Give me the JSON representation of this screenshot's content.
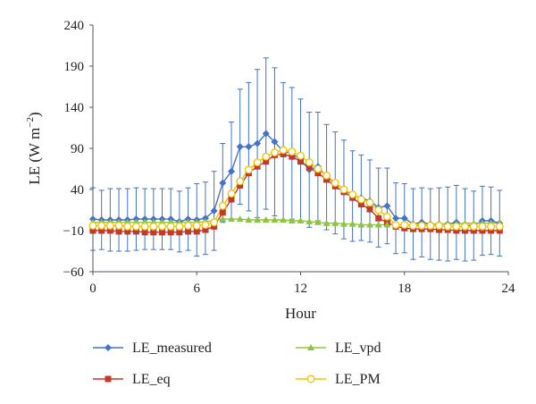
{
  "chart_data": {
    "type": "line",
    "xlabel": "Hour",
    "ylabel_main": "LE (W m",
    "ylabel_exp": "−2",
    "ylabel_close": ")",
    "xlim": [
      0,
      24
    ],
    "ylim": [
      -60,
      240
    ],
    "xticks": [
      "0",
      "6",
      "12",
      "18",
      "24"
    ],
    "yticks": [
      "240",
      "190",
      "140",
      "90",
      "40",
      "−10",
      "−60"
    ],
    "grid": false,
    "legend_position": "bottom",
    "x": [
      0,
      0.5,
      1,
      1.5,
      2,
      2.5,
      3,
      3.5,
      4,
      4.5,
      5,
      5.5,
      6,
      6.5,
      7,
      7.5,
      8,
      8.5,
      9,
      9.5,
      10,
      10.5,
      11,
      11.5,
      12,
      12.5,
      13,
      13.5,
      14,
      14.5,
      15,
      15.5,
      16,
      16.5,
      17,
      17.5,
      18,
      18.5,
      19,
      19.5,
      20,
      20.5,
      21,
      21.5,
      22,
      22.5,
      23,
      23.5
    ],
    "series": [
      {
        "name": "LE_measured",
        "color": "#4472c4",
        "marker": "diamond",
        "values": [
          4,
          3,
          3,
          3,
          3,
          4,
          4,
          4,
          4,
          4,
          1,
          4,
          3,
          5,
          14,
          48,
          62,
          92,
          92,
          96,
          108,
          98,
          86,
          84,
          76,
          64,
          68,
          55,
          48,
          40,
          32,
          30,
          26,
          18,
          20,
          5,
          5,
          -2,
          0,
          -2,
          -2,
          -2,
          0,
          -3,
          -4,
          2,
          2,
          -1
        ],
        "error": [
          38,
          36,
          38,
          38,
          38,
          38,
          37,
          37,
          37,
          37,
          37,
          38,
          44,
          44,
          48,
          48,
          60,
          70,
          78,
          90,
          92,
          90,
          84,
          80,
          74,
          70,
          66,
          64,
          62,
          60,
          55,
          52,
          50,
          48,
          46,
          43,
          42,
          43,
          42,
          43,
          44,
          45,
          45,
          44,
          42,
          42,
          41,
          40
        ]
      },
      {
        "name": "LE_eq",
        "color": "#c0392b",
        "marker": "square",
        "values": [
          -10,
          -10,
          -10,
          -11,
          -11,
          -11,
          -12,
          -12,
          -12,
          -12,
          -12,
          -11,
          -11,
          -9,
          -5,
          12,
          28,
          45,
          60,
          68,
          74,
          82,
          83,
          80,
          74,
          67,
          60,
          52,
          44,
          37,
          30,
          22,
          16,
          5,
          0,
          -5,
          -7,
          -8,
          -8,
          -8,
          -9,
          -9,
          -10,
          -10,
          -10,
          -10,
          -10,
          -10
        ]
      },
      {
        "name": "LE_vpd",
        "color": "#8cc63f",
        "marker": "triangle",
        "values": [
          0,
          0,
          0,
          0,
          0,
          0,
          0,
          0,
          0,
          0,
          0,
          0,
          0,
          1,
          2,
          4,
          4,
          4,
          3,
          3,
          3,
          3,
          3,
          2,
          2,
          1,
          0,
          -1,
          -1,
          -2,
          -2,
          -3,
          -3,
          -3,
          -3,
          -3,
          -3,
          -3,
          -3,
          -2,
          -2,
          -2,
          -2,
          -1,
          -1,
          -1,
          -1,
          -1
        ]
      },
      {
        "name": "LE_PM",
        "color": "#f2c200",
        "marker": "circle",
        "values": [
          -4,
          -4,
          -4,
          -4,
          -5,
          -5,
          -5,
          -5,
          -5,
          -5,
          -5,
          -4,
          -4,
          -3,
          0,
          20,
          35,
          50,
          64,
          73,
          80,
          85,
          88,
          86,
          81,
          73,
          65,
          57,
          48,
          40,
          34,
          28,
          24,
          15,
          7,
          -3,
          -3,
          -4,
          -4,
          -4,
          -4,
          -5,
          -5,
          -5,
          -5,
          -5,
          -5,
          -5
        ]
      }
    ]
  }
}
